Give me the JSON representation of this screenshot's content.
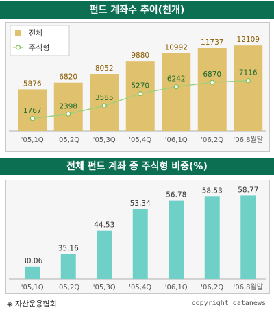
{
  "chart_data": [
    {
      "type": "bar",
      "title": "펀드 계좌수 추이(천개)",
      "categories": [
        "'05,1Q",
        "'05,2Q",
        "'05,3Q",
        "'05,4Q",
        "'06,1Q",
        "'06,2Q",
        "'06,8월말"
      ],
      "series": [
        {
          "name": "전체",
          "type": "bar",
          "color": "#e0c26e",
          "values": [
            5876,
            6820,
            8052,
            9880,
            10992,
            11737,
            12109
          ]
        },
        {
          "name": "주식형",
          "type": "line",
          "color": "#9fd07a",
          "values": [
            1767,
            2398,
            3585,
            5270,
            6242,
            6870,
            7116
          ]
        }
      ],
      "ylim": [
        0,
        13000
      ],
      "legend": "top-left",
      "grid": false
    },
    {
      "type": "bar",
      "title": "전체 펀드 계좌 중 주식형 비중(%)",
      "categories": [
        "'05,1Q",
        "'05,2Q",
        "'05,3Q",
        "'05,4Q",
        "'06,1Q",
        "'06,2Q",
        "'06,8월말"
      ],
      "values": [
        30.06,
        35.16,
        44.53,
        53.34,
        56.78,
        58.53,
        58.77
      ],
      "value_labels": [
        "30.06",
        "35.16",
        "44.53",
        "53.34",
        "56.78",
        "58.53",
        "58.77"
      ],
      "color": "#6fd0c8",
      "ylim": [
        25,
        60
      ],
      "grid": false
    }
  ],
  "footer": {
    "source": "◈ 자산운용협회",
    "credit": "copyright datanews"
  }
}
